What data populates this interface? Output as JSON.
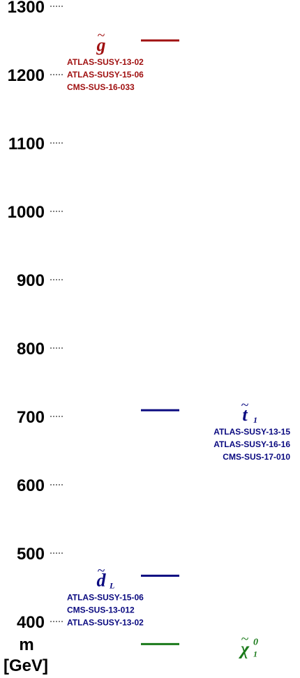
{
  "axis": {
    "ticks": [
      {
        "value": 1300,
        "label": "1300"
      },
      {
        "value": 1200,
        "label": "1200"
      },
      {
        "value": 1100,
        "label": "1100"
      },
      {
        "value": 1000,
        "label": "1000"
      },
      {
        "value": 900,
        "label": "900"
      },
      {
        "value": 800,
        "label": "800"
      },
      {
        "value": 700,
        "label": "700"
      },
      {
        "value": 600,
        "label": "600"
      },
      {
        "value": 500,
        "label": "500"
      },
      {
        "value": 400,
        "label": "400"
      }
    ],
    "label_line1": "m",
    "label_line2": "[GeV]"
  },
  "particles": [
    {
      "id": "gluino",
      "symbol": "g",
      "tilde": "~",
      "subscript": "",
      "superscript": "",
      "mass": 1250,
      "column": "left",
      "color": "#a01010",
      "refs": [
        "ATLAS-SUSY-13-02",
        "ATLAS-SUSY-15-06",
        "CMS-SUS-16-033"
      ]
    },
    {
      "id": "stop1",
      "symbol": "t",
      "tilde": "~",
      "subscript": "1",
      "superscript": "",
      "mass": 709,
      "column": "right",
      "color": "#0a0a80",
      "refs": [
        "ATLAS-SUSY-13-15",
        "ATLAS-SUSY-16-16",
        "CMS-SUS-17-010"
      ]
    },
    {
      "id": "dL",
      "symbol": "d",
      "tilde": "~",
      "subscript": "L",
      "superscript": "",
      "mass": 467,
      "column": "left",
      "color": "#0a0a80",
      "refs": [
        "ATLAS-SUSY-15-06",
        "CMS-SUS-13-012",
        "ATLAS-SUSY-13-02"
      ]
    },
    {
      "id": "neutralino1",
      "symbol": "χ",
      "tilde": "~",
      "subscript": "1",
      "superscript": "0",
      "mass": 367,
      "column": "right",
      "color": "#1a7a1a",
      "refs": []
    }
  ],
  "colors": {
    "axis_text": "#000000",
    "tick_dash": "#000000"
  }
}
